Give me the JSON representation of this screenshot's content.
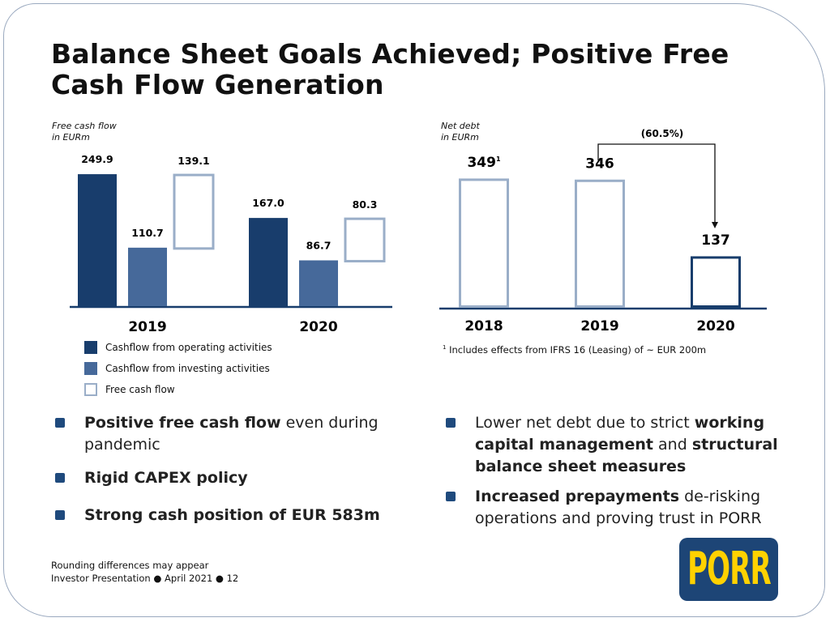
{
  "title_line1": "Balance Sheet Goals Achieved; Positive Free",
  "title_line2": "Cash Flow Generation",
  "colors": {
    "operating": "#183d6c",
    "investing": "#46699a",
    "fcf_outline": "#9aaec8",
    "net_debt_2020": "#183d6c",
    "bullet": "#1f4a7d",
    "logo_bg": "#1d4576",
    "logo_text": "#ffd200"
  },
  "chart_data": [
    {
      "type": "bar",
      "title": "Free cash flow",
      "subtitle": "in EURm",
      "categories": [
        "2019",
        "2020"
      ],
      "series": [
        {
          "name": "Cashflow from operating activities",
          "values": [
            249.9,
            167.0
          ]
        },
        {
          "name": "Cashflow from investing activities",
          "values": [
            110.7,
            86.7
          ]
        },
        {
          "name": "Free cash flow",
          "values": [
            139.1,
            80.3
          ],
          "style": "outline-floating"
        }
      ],
      "labels": [
        [
          "249.9",
          "110.7",
          "139.1"
        ],
        [
          "167.0",
          "86.7",
          "80.3"
        ]
      ],
      "legend": "bottom-left",
      "grid": false
    },
    {
      "type": "bar",
      "title": "Net debt",
      "subtitle": "in EURm",
      "categories": [
        "2018",
        "2019",
        "2020"
      ],
      "values": [
        349,
        346,
        137
      ],
      "labels": [
        "349",
        "346",
        "137"
      ],
      "label_sup": [
        "1",
        "",
        ""
      ],
      "annotation": "(60.5%)",
      "footnote_mark": "1",
      "footnote": "Includes effects from IFRS 16 (Leasing) of ~ EUR 200m",
      "grid": false
    }
  ],
  "bullets_left": [
    {
      "bold": "Positive free cash flow",
      "rest": " even during pandemic"
    },
    {
      "bold": "Rigid CAPEX policy",
      "rest": ""
    },
    {
      "bold": "Strong cash position of EUR 583m",
      "rest": ""
    }
  ],
  "bullets_right": [
    {
      "html": "Lower net debt due to strict <b>working capital management</b> and <b>structural balance sheet measures</b>"
    },
    {
      "html": "<b>Increased prepayments</b> de-risking operations and proving trust in PORR"
    }
  ],
  "footer": {
    "line1": "Rounding differences may appear",
    "line2": "Investor Presentation ● April 2021 ● 12"
  },
  "logo_text": "PORR"
}
